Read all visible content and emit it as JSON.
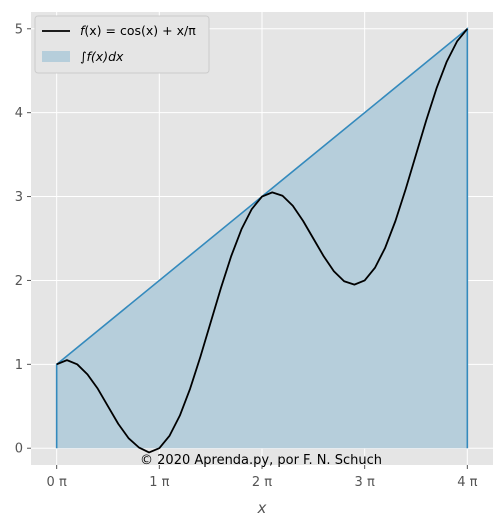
{
  "chart_data": {
    "type": "area",
    "title": "",
    "xlabel": "x",
    "ylabel": "",
    "xlim": [
      -0.25,
      4.25
    ],
    "ylim": [
      -0.2,
      5.2
    ],
    "xticks": [
      0,
      1,
      2,
      3,
      4
    ],
    "xtick_labels": [
      "0 π",
      "1 π",
      "2 π",
      "3 π",
      "4 π"
    ],
    "yticks": [
      0,
      1,
      2,
      3,
      4,
      5
    ],
    "ytick_labels": [
      "0",
      "1",
      "2",
      "3",
      "4",
      "5"
    ],
    "x_unit": "π",
    "grid": true,
    "legend_position": "top-left",
    "series": [
      {
        "name": "f(x) = cos(x) + x/π",
        "type": "line",
        "color": "#000000",
        "x": [
          0,
          0.1,
          0.2,
          0.3,
          0.4,
          0.5,
          0.6,
          0.7,
          0.8,
          0.9,
          1.0,
          1.1,
          1.2,
          1.3,
          1.4,
          1.5,
          1.6,
          1.7,
          1.8,
          1.9,
          2.0,
          2.1,
          2.2,
          2.3,
          2.4,
          2.5,
          2.6,
          2.7,
          2.8,
          2.9,
          3.0,
          3.1,
          3.2,
          3.3,
          3.4,
          3.5,
          3.6,
          3.7,
          3.8,
          3.9,
          4.0
        ],
        "y": [
          1.0,
          1.05,
          1.0,
          0.88,
          0.71,
          0.5,
          0.29,
          0.12,
          0.01,
          -0.05,
          0.0,
          0.15,
          0.39,
          0.71,
          1.09,
          1.5,
          1.91,
          2.29,
          2.61,
          2.85,
          3.0,
          3.05,
          3.01,
          2.89,
          2.71,
          2.5,
          2.29,
          2.11,
          1.99,
          1.95,
          2.0,
          2.15,
          2.39,
          2.71,
          3.09,
          3.5,
          3.91,
          4.29,
          4.61,
          4.85,
          5.0
        ]
      },
      {
        "name": "∫f(x)dx",
        "type": "fill",
        "color": "#348abd",
        "fill_color": "#b6cedb",
        "x": [
          0,
          4
        ],
        "y": [
          1,
          5
        ],
        "baseline": 0
      }
    ],
    "annotations": [
      "© 2020 Aprenda.py, por F. N. Schuch"
    ]
  },
  "legend": {
    "line_label_prefix": "f",
    "line_label_rest": "(x) = cos(x) + x/π",
    "fill_label_prefix": "∫",
    "fill_label_rest": "f(x)dx"
  },
  "colors": {
    "axes_background": "#e5e5e5",
    "grid": "#ffffff",
    "line": "#000000",
    "fill": "#b6cedb",
    "fill_edge": "#348abd"
  }
}
